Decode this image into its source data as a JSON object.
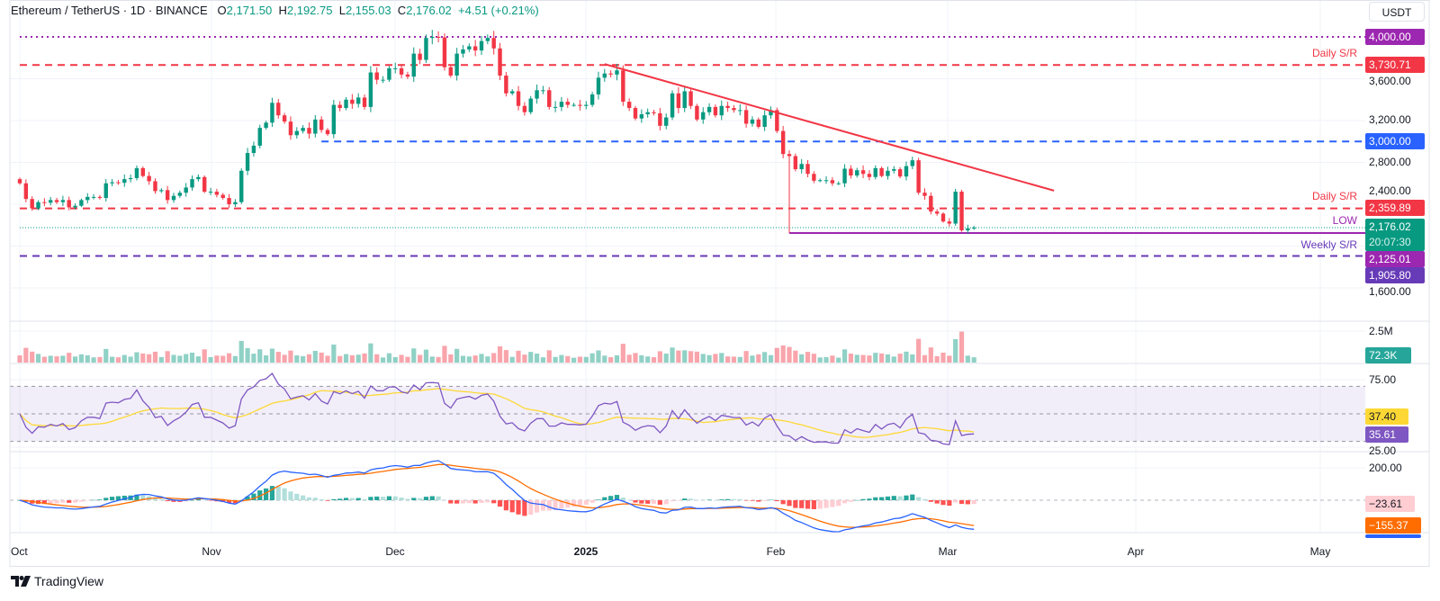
{
  "header": {
    "symbol": "Ethereum / TetherUS · 1D · BINANCE",
    "open_label": "O",
    "open": "2,171.50",
    "high_label": "H",
    "high": "2,192.75",
    "low_label": "L",
    "low": "2,155.03",
    "close_label": "C",
    "close": "2,176.02",
    "change": "+4.51 (+0.21%)"
  },
  "axis": {
    "currency": "USDT",
    "price_ticks": [
      "3,600.00",
      "3,200.00",
      "2,800.00",
      "2,400.00",
      "1,600.00"
    ],
    "volume_tick": "2.5M",
    "rsi_ticks": [
      "75.00",
      "25.00"
    ],
    "macd_tick": "200.00",
    "time_labels": [
      "Oct",
      "Nov",
      "Dec",
      "2025",
      "Feb",
      "Mar",
      "Apr",
      "May"
    ]
  },
  "price_labels": {
    "level_4000": {
      "text": "4,000.00",
      "color": "#9c27b0"
    },
    "daily_sr_upper": {
      "text": "3,730.71",
      "color": "#f23645"
    },
    "level_3000": {
      "text": "3,000.00",
      "color": "#2962ff"
    },
    "daily_sr_lower": {
      "text": "2,359.89",
      "color": "#f23645"
    },
    "last_price": {
      "text": "2,176.02",
      "countdown": "20:07:30",
      "color": "#089981"
    },
    "low_level": {
      "text": "2,125.01",
      "color": "#9c27b0"
    },
    "weekly_sr": {
      "text": "1,905.80",
      "color": "#673ab7"
    },
    "volume_last": {
      "text": "72.3K",
      "color": "#26a69a"
    },
    "rsi_ma": {
      "text": "37.40",
      "color": "#fdd835"
    },
    "rsi": {
      "text": "35.61",
      "color": "#7e57c2"
    },
    "macd_hist": {
      "text": "−23.61",
      "color": "#ffcdd2"
    },
    "macd_signal": {
      "text": "−155.37",
      "color": "#ff6d00"
    },
    "macd_line": {
      "color": "#2962ff"
    }
  },
  "annotations": {
    "daily_sr_upper": "Daily S/R",
    "daily_sr_lower": "Daily S/R",
    "low": "LOW",
    "weekly_sr": "Weekly S/R"
  },
  "footer": {
    "brand": "TradingView"
  },
  "chart_data": {
    "type": "candlestick",
    "interval": "1D",
    "colors": {
      "up": "#089981",
      "down": "#f23645"
    },
    "closes_by_month": {
      "2024-10": [
        2600,
        2450,
        2360,
        2420,
        2415,
        2440,
        2420,
        2440,
        2370,
        2385,
        2440,
        2470,
        2470,
        2460,
        2600,
        2610,
        2605,
        2640,
        2650,
        2745,
        2670,
        2620,
        2525,
        2535,
        2440,
        2480,
        2510,
        2560,
        2640,
        2660,
        2520
      ],
      "2024-11": [
        2520,
        2490,
        2460,
        2400,
        2420,
        2720,
        2890,
        2960,
        3130,
        3180,
        3370,
        3250,
        3190,
        3060,
        3100,
        3130,
        3075,
        3210,
        3110,
        3070,
        3350,
        3320,
        3400,
        3360,
        3420,
        3330,
        3660,
        3590,
        3590,
        3700
      ],
      "2024-12": [
        3700,
        3640,
        3620,
        3840,
        3780,
        3990,
        4000,
        3995,
        3710,
        3630,
        3840,
        3880,
        3910,
        3870,
        3960,
        3990,
        3890,
        3630,
        3460,
        3480,
        3340,
        3280,
        3410,
        3490,
        3490,
        3330,
        3330,
        3380,
        3350,
        3350,
        3340
      ],
      "2025-01": [
        3350,
        3450,
        3610,
        3650,
        3640,
        3680,
        3380,
        3320,
        3220,
        3260,
        3280,
        3270,
        3150,
        3230,
        3460,
        3320,
        3480,
        3340,
        3210,
        3280,
        3330,
        3250,
        3340,
        3320,
        3300,
        3300,
        3170,
        3210,
        3140,
        3250,
        3300
      ],
      "2025-02": [
        3100,
        2880,
        2860,
        2735,
        2785,
        2690,
        2625,
        2630,
        2630,
        2600,
        2600,
        2740,
        2675,
        2725,
        2690,
        2660,
        2745,
        2670,
        2720,
        2735,
        2665,
        2765,
        2820,
        2510,
        2480,
        2330,
        2310,
        2235
      ],
      "2025-03": [
        2215,
        2520,
        2150,
        2170,
        2176.02
      ]
    },
    "horizontal_levels": [
      {
        "key": "level_4000",
        "price": 4000.0,
        "color": "#9c27b0",
        "style": "dotted",
        "from": "2024-10-01"
      },
      {
        "key": "daily_sr_upper",
        "price": 3730.71,
        "color": "#f23645",
        "style": "dashed",
        "from": "2024-10-01"
      },
      {
        "key": "level_3000",
        "price": 3000.0,
        "color": "#2962ff",
        "style": "dashed",
        "from": "2024-11-19"
      },
      {
        "key": "daily_sr_lower",
        "price": 2359.89,
        "color": "#f23645",
        "style": "dashed",
        "from": "2024-10-01"
      },
      {
        "key": "low_level",
        "price": 2125.01,
        "color": "#9c27b0",
        "style": "solid",
        "from": "2025-02-03"
      },
      {
        "key": "weekly_sr",
        "price": 1905.8,
        "color": "#673ab7",
        "style": "dashed",
        "from": "2024-10-01"
      },
      {
        "key": "last_price",
        "price": 2176.02,
        "color": "#089981",
        "style": "dotted",
        "from": "2024-10-01"
      }
    ],
    "trendline": {
      "color": "#f23645",
      "from": {
        "date": "2025-01-04",
        "price": 3740
      },
      "to": {
        "date": "2025-03-18",
        "price": 2530
      }
    },
    "price_range": [
      1600,
      4000
    ],
    "indicators": {
      "rsi": {
        "length": 14,
        "ma_length": 14,
        "bands": [
          70,
          50,
          30
        ],
        "range": [
          25,
          75
        ],
        "line_color": "#7e57c2",
        "ma_color": "#fdd835"
      },
      "macd": {
        "fast": 12,
        "slow": 26,
        "signal": 9,
        "line_color": "#2962ff",
        "signal_color": "#ff6d00"
      }
    },
    "grid": true
  }
}
